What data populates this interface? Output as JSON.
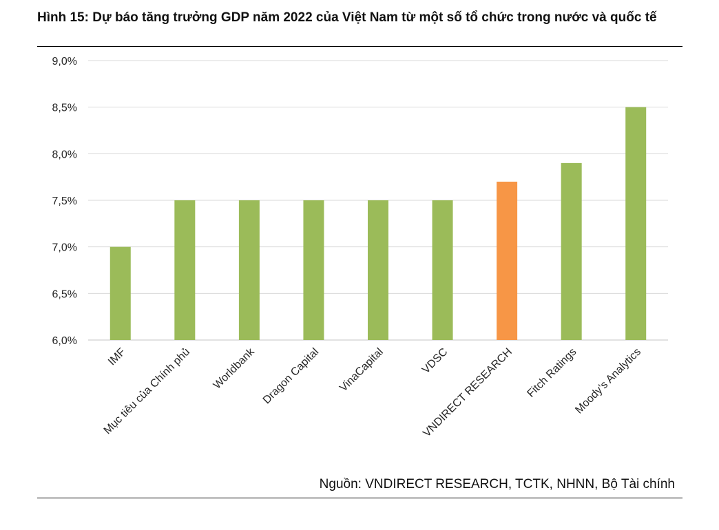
{
  "figure": {
    "title": "Hình 15: Dự báo tăng trưởng GDP năm 2022 của Việt Nam từ một số tổ chức trong nước và quốc tế",
    "source": "Nguồn: VNDIRECT RESEARCH, TCTK, NHNN, Bộ Tài chính"
  },
  "chart_data": {
    "type": "bar",
    "title": "Dự báo tăng trưởng GDP năm 2022 của Việt Nam từ một số tổ chức trong nước và quốc tế",
    "xlabel": "",
    "ylabel": "",
    "categories": [
      "IMF",
      "Mục tiêu của Chính phủ",
      "Worldbank",
      "Dragon Capital",
      "VinaCapital",
      "VDSC",
      "VNDIRECT RESEARCH",
      "Fitch Ratings",
      "Moody’s Analytics"
    ],
    "values": [
      7.0,
      7.5,
      7.5,
      7.5,
      7.5,
      7.5,
      7.7,
      7.9,
      8.5
    ],
    "ylim": [
      6.0,
      9.0
    ],
    "yticks": [
      6.0,
      6.5,
      7.0,
      7.5,
      8.0,
      8.5,
      9.0
    ],
    "ytick_labels": [
      "6,0%",
      "6,5%",
      "7,0%",
      "7,5%",
      "8,0%",
      "8,5%",
      "9,0%"
    ],
    "grid": true,
    "legend": "none",
    "highlight_category": "VNDIRECT RESEARCH",
    "colors": {
      "bar": "#9bbb59",
      "highlight": "#f79646",
      "grid": "#d9d9d9"
    }
  }
}
